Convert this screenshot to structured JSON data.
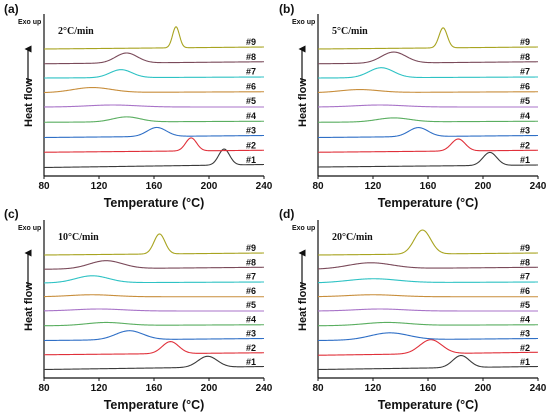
{
  "x_label": "Temperature (°C)",
  "y_label": "Heat flow",
  "exo_label": "Exo up",
  "x_ticks": [
    "80",
    "120",
    "160",
    "200",
    "240"
  ],
  "curve_colors": [
    "#3a3a3a",
    "#e0303a",
    "#2f6fc6",
    "#5aae60",
    "#a873c8",
    "#c88e3c",
    "#2ec2c4",
    "#7a4a5a",
    "#a8a420"
  ],
  "chart_data": [
    {
      "type": "line",
      "panel": "(a)",
      "rate": "2°C/min",
      "xlim": [
        80,
        240
      ],
      "series": [
        {
          "name": "#1",
          "peak_x": 211,
          "height": 16,
          "width": 4,
          "base_slope": 3
        },
        {
          "name": "#2",
          "peak_x": 187,
          "height": 13,
          "width": 4,
          "base_slope": 2
        },
        {
          "name": "#3",
          "peak_x": 162,
          "height": 9,
          "width": 7,
          "base_slope": 2
        },
        {
          "name": "#4",
          "peak_x": 140,
          "height": 5,
          "width": 10,
          "base_slope": 1
        },
        {
          "name": "#5",
          "peak_x": 130,
          "height": 2,
          "width": 18,
          "base_slope": 0
        },
        {
          "name": "#6",
          "peak_x": 115,
          "height": 5,
          "width": 14,
          "base_slope": 1
        },
        {
          "name": "#7",
          "peak_x": 136,
          "height": 8,
          "width": 8,
          "base_slope": 1
        },
        {
          "name": "#8",
          "peak_x": 140,
          "height": 10,
          "width": 8,
          "base_slope": 2
        },
        {
          "name": "#9",
          "peak_x": 176,
          "height": 21,
          "width": 2.5,
          "base_slope": 2
        }
      ]
    },
    {
      "type": "line",
      "panel": "(b)",
      "rate": "5°C/min",
      "xlim": [
        80,
        240
      ],
      "series": [
        {
          "name": "#1",
          "peak_x": 205,
          "height": 13,
          "width": 5,
          "base_slope": 2
        },
        {
          "name": "#2",
          "peak_x": 182,
          "height": 12,
          "width": 5,
          "base_slope": 2
        },
        {
          "name": "#3",
          "peak_x": 153,
          "height": 9,
          "width": 7,
          "base_slope": 2
        },
        {
          "name": "#4",
          "peak_x": 135,
          "height": 4,
          "width": 12,
          "base_slope": 1
        },
        {
          "name": "#5",
          "peak_x": 125,
          "height": 2,
          "width": 18,
          "base_slope": 0
        },
        {
          "name": "#6",
          "peak_x": 110,
          "height": 3,
          "width": 14,
          "base_slope": 1
        },
        {
          "name": "#7",
          "peak_x": 126,
          "height": 10,
          "width": 9,
          "base_slope": 1
        },
        {
          "name": "#8",
          "peak_x": 135,
          "height": 11,
          "width": 9,
          "base_slope": 2
        },
        {
          "name": "#9",
          "peak_x": 171,
          "height": 20,
          "width": 3,
          "base_slope": 2
        }
      ]
    },
    {
      "type": "line",
      "panel": "(c)",
      "rate": "10°C/min",
      "xlim": [
        80,
        240
      ],
      "series": [
        {
          "name": "#1",
          "peak_x": 199,
          "height": 11,
          "width": 7,
          "base_slope": 3
        },
        {
          "name": "#2",
          "peak_x": 172,
          "height": 12,
          "width": 6,
          "base_slope": 2
        },
        {
          "name": "#3",
          "peak_x": 142,
          "height": 9,
          "width": 10,
          "base_slope": 2
        },
        {
          "name": "#4",
          "peak_x": 125,
          "height": 3,
          "width": 14,
          "base_slope": 1
        },
        {
          "name": "#5",
          "peak_x": 120,
          "height": 2,
          "width": 18,
          "base_slope": 0
        },
        {
          "name": "#6",
          "peak_x": 115,
          "height": 2,
          "width": 16,
          "base_slope": 0
        },
        {
          "name": "#7",
          "peak_x": 115,
          "height": 7,
          "width": 12,
          "base_slope": 1
        },
        {
          "name": "#8",
          "peak_x": 125,
          "height": 8,
          "width": 12,
          "base_slope": 2
        },
        {
          "name": "#9",
          "peak_x": 164,
          "height": 20,
          "width": 4,
          "base_slope": 2
        }
      ]
    },
    {
      "type": "line",
      "panel": "(d)",
      "rate": "20°C/min",
      "xlim": [
        80,
        240
      ],
      "series": [
        {
          "name": "#1",
          "peak_x": 184,
          "height": 12,
          "width": 6,
          "base_slope": 3
        },
        {
          "name": "#2",
          "peak_x": 162,
          "height": 14,
          "width": 8,
          "base_slope": 3
        },
        {
          "name": "#3",
          "peak_x": 132,
          "height": 7,
          "width": 14,
          "base_slope": 2
        },
        {
          "name": "#4",
          "peak_x": 130,
          "height": 3,
          "width": 16,
          "base_slope": 1
        },
        {
          "name": "#5",
          "peak_x": 125,
          "height": 2,
          "width": 18,
          "base_slope": 0
        },
        {
          "name": "#6",
          "peak_x": 120,
          "height": 2,
          "width": 18,
          "base_slope": 0
        },
        {
          "name": "#7",
          "peak_x": 120,
          "height": 4,
          "width": 18,
          "base_slope": 1
        },
        {
          "name": "#8",
          "peak_x": 118,
          "height": 6,
          "width": 16,
          "base_slope": 2
        },
        {
          "name": "#9",
          "peak_x": 156,
          "height": 24,
          "width": 6,
          "base_slope": 2
        }
      ]
    }
  ]
}
